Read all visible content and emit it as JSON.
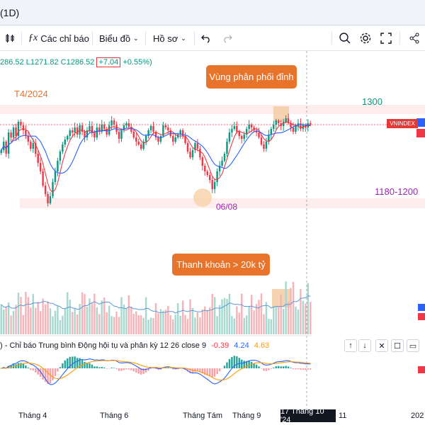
{
  "window": {
    "title": "(1D)"
  },
  "toolbar": {
    "indicators_label": "Các chỉ báo",
    "chart_type_label": "Biểu đồ",
    "profile_label": "Hồ sơ"
  },
  "ohlc": {
    "open": "286.52",
    "low": "L1271.82",
    "close": "C1286.52",
    "change": "+7.04",
    "change_pct": "+0.55%)"
  },
  "annotations": {
    "period": "T4/2024",
    "level_1300": "1300",
    "level_range": "1180-1200",
    "low_date": "06/08",
    "callout_top": "Vùng phân phối đỉnh",
    "callout_volume": "Thanh khoản > 20k tỷ"
  },
  "price_badge": "VNINDEX",
  "macd": {
    "label": ") - Chỉ báo Trung bình Động hội tụ và phân kỳ",
    "params": "12 26 close 9",
    "v1": "-0.39",
    "v2": "4.24",
    "v3": "4.63"
  },
  "time_axis": {
    "labels": [
      "Tháng 4",
      "Tháng 6",
      "Tháng Tám",
      "Tháng 9",
      "11",
      "202"
    ],
    "current_date": "17 Tháng 10 '24"
  },
  "colors": {
    "up": "#089981",
    "down": "#f23645",
    "accent": "#e8742c",
    "ma_fast": "#f23645",
    "ma_slow": "#2962ff"
  },
  "chart_data": {
    "type": "candlestick",
    "y_range": [
      1150,
      1320
    ],
    "levels": [
      1300,
      1190
    ],
    "close": [
      1250,
      1262,
      1245,
      1275,
      1268,
      1282,
      1270,
      1290,
      1285,
      1278,
      1270,
      1262,
      1252,
      1260,
      1245,
      1232,
      1220,
      1200,
      1188,
      1175,
      1185,
      1205,
      1220,
      1235,
      1248,
      1258,
      1265,
      1270,
      1278,
      1275,
      1282,
      1272,
      1285,
      1276,
      1268,
      1278,
      1284,
      1274,
      1268,
      1282,
      1276,
      1286,
      1280,
      1272,
      1285,
      1292,
      1286,
      1276,
      1266,
      1278,
      1285,
      1288,
      1283,
      1276,
      1268,
      1262,
      1258,
      1252,
      1262,
      1270,
      1278,
      1284,
      1276,
      1268,
      1262,
      1270,
      1285,
      1282,
      1278,
      1270,
      1262,
      1268,
      1272,
      1278,
      1270,
      1260,
      1248,
      1240,
      1250,
      1260,
      1252,
      1240,
      1228,
      1220,
      1215,
      1208,
      1195,
      1205,
      1220,
      1228,
      1235,
      1245,
      1262,
      1275,
      1280,
      1284,
      1276,
      1270,
      1266,
      1272,
      1280,
      1286,
      1282,
      1278,
      1275,
      1268,
      1258,
      1252,
      1262,
      1272,
      1280,
      1286,
      1292,
      1288,
      1284,
      1290,
      1295,
      1288,
      1282,
      1276,
      1284,
      1288,
      1280,
      1286,
      1282,
      1288,
      1286
    ]
  }
}
